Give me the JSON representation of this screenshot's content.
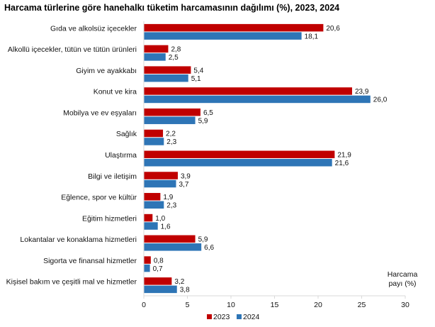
{
  "chart_data": {
    "type": "bar",
    "orientation": "horizontal",
    "title": "Harcama türlerine göre hanehalkı tüketim harcamasının dağılımı (%), 2023, 2024",
    "xlabel": "Harcama payı  (%)",
    "xlabel_lines": [
      "Harcama",
      "payı  (%)"
    ],
    "ylabel": "",
    "xlim": [
      0,
      30
    ],
    "xticks": [
      0,
      5,
      10,
      15,
      20,
      25,
      30
    ],
    "grid": false,
    "legend_position": "bottom",
    "categories": [
      "Gıda ve alkolsüz içecekler",
      "Alkollü içecekler, tütün ve tütün ürünleri",
      "Giyim ve ayakkabı",
      "Konut ve kira",
      "Mobilya ve ev eşyaları",
      "Sağlık",
      "Ulaştırma",
      "Bilgi ve iletişim",
      "Eğlence, spor ve kültür",
      "Eğitim hizmetleri",
      "Lokantalar ve konaklama hizmetleri",
      "Sigorta ve finansal hizmetler",
      "Kişisel bakım ve çeşitli mal ve hizmetler"
    ],
    "series": [
      {
        "name": "2023",
        "color": "#c00000",
        "values": [
          20.6,
          2.8,
          5.4,
          23.9,
          6.5,
          2.2,
          21.9,
          3.9,
          1.9,
          1.0,
          5.9,
          0.8,
          3.2
        ],
        "labels": [
          "20,6",
          "2,8",
          "5,4",
          "23,9",
          "6,5",
          "2,2",
          "21,9",
          "3,9",
          "1,9",
          "1,0",
          "5,9",
          "0,8",
          "3,2"
        ]
      },
      {
        "name": "2024",
        "color": "#2e75b6",
        "values": [
          18.1,
          2.5,
          5.1,
          26.0,
          5.9,
          2.3,
          21.6,
          3.7,
          2.3,
          1.6,
          6.6,
          0.7,
          3.8
        ],
        "labels": [
          "18,1",
          "2,5",
          "5,1",
          "26,0",
          "5,9",
          "2,3",
          "21,6",
          "3,7",
          "2,3",
          "1,6",
          "6,6",
          "0,7",
          "3,8"
        ]
      }
    ],
    "axis_color": "#d9d9d9"
  }
}
